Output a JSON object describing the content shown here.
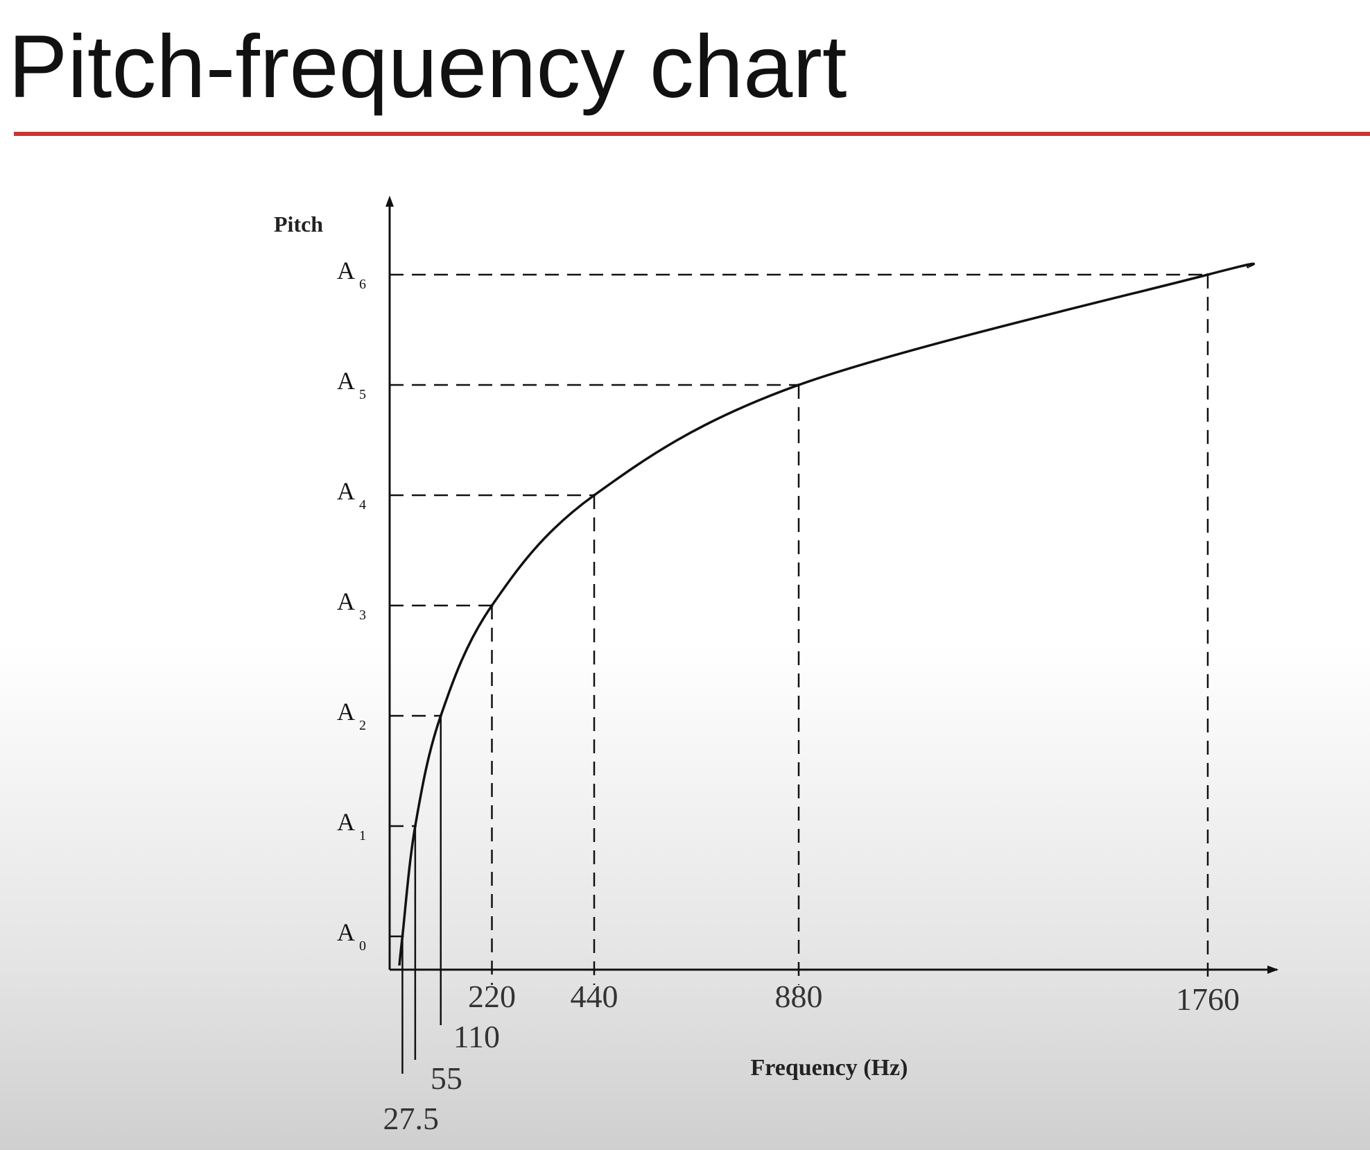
{
  "slide": {
    "title": "Pitch-frequency chart",
    "rule_color": "#cc3333"
  },
  "chart_data": {
    "type": "line",
    "title": "",
    "xlabel": "Frequency (Hz)",
    "ylabel": "Pitch",
    "x": [
      27.5,
      55,
      110,
      220,
      440,
      880,
      1760
    ],
    "x_tick_labels": [
      "27.5",
      "55",
      "110",
      "220",
      "440",
      "880",
      "1760"
    ],
    "y_categories": [
      {
        "letter": "A",
        "sub": "0"
      },
      {
        "letter": "A",
        "sub": "1"
      },
      {
        "letter": "A",
        "sub": "2"
      },
      {
        "letter": "A",
        "sub": "3"
      },
      {
        "letter": "A",
        "sub": "4"
      },
      {
        "letter": "A",
        "sub": "5"
      },
      {
        "letter": "A",
        "sub": "6"
      }
    ],
    "series": [
      {
        "points": [
          [
            27.5,
            0
          ],
          [
            55,
            1
          ],
          [
            110,
            2
          ],
          [
            220,
            3
          ],
          [
            440,
            4
          ],
          [
            880,
            5
          ],
          [
            1760,
            6
          ]
        ]
      }
    ],
    "xlim": [
      0,
      1850
    ],
    "guide_lines": "dashed",
    "grid": false,
    "line_color": "#111111"
  }
}
